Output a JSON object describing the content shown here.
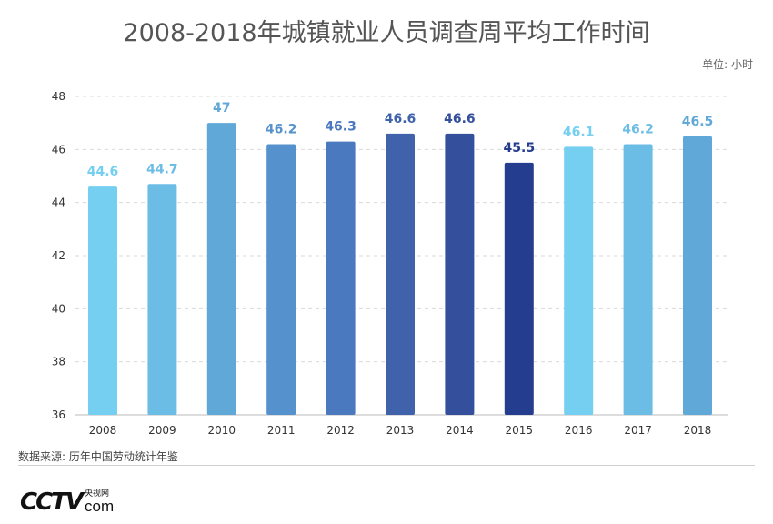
{
  "title": "2008-2018年城镇就业人员调查周平均工作时间",
  "unit": "单位: 小时",
  "source": "数据来源: 历年中国劳动统计年鉴",
  "logo": {
    "main": "CCTV",
    "cn": "央视网",
    "com": "com"
  },
  "chart_data": {
    "type": "bar",
    "title": "2008-2018年城镇就业人员调查周平均工作时间",
    "xlabel": "",
    "ylabel": "单位: 小时",
    "categories": [
      "2008",
      "2009",
      "2010",
      "2011",
      "2012",
      "2013",
      "2014",
      "2015",
      "2016",
      "2017",
      "2018"
    ],
    "values": [
      44.6,
      44.7,
      47,
      46.2,
      46.3,
      46.6,
      46.6,
      45.5,
      46.1,
      46.2,
      46.5
    ],
    "labels": [
      "44.6",
      "44.7",
      "47",
      "46.2",
      "46.3",
      "46.6",
      "46.6",
      "45.5",
      "46.1",
      "46.2",
      "46.5"
    ],
    "colors": [
      "#74cff0",
      "#6cbde6",
      "#5fa8d8",
      "#5591cc",
      "#4b79bf",
      "#3f62aa",
      "#344f9c",
      "#253d8e",
      "#74cff0",
      "#6cbde6",
      "#5fa8d8"
    ],
    "ylim": [
      36,
      48
    ],
    "yticks": [
      36,
      38,
      40,
      42,
      44,
      46,
      48
    ],
    "grid": true
  }
}
